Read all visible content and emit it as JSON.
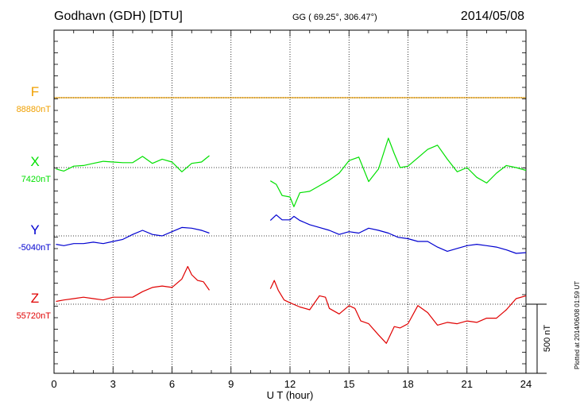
{
  "header": {
    "station": "Godhavn (GDH)  [DTU]",
    "coords": "GG ( 69.25°, 306.47°)",
    "date": "2014/05/08"
  },
  "plot_stamp": "Plotted at 2014/06/08 01:59 UT",
  "colors": {
    "F": "#f0a000",
    "X": "#00e000",
    "Y": "#0000d0",
    "Z": "#e00000"
  },
  "chart_data": {
    "type": "line",
    "title": "Godhavn (GDH)  [DTU]  2014/05/08",
    "xlabel": "U T (hour)",
    "ylabel": "",
    "xlim": [
      0,
      24
    ],
    "xticks": [
      "0",
      "3",
      "6",
      "9",
      "12",
      "15",
      "18",
      "21",
      "24"
    ],
    "scale_bar": "500 nT",
    "y_units": "nT offset from baseline",
    "ylim_relative": [
      -1000,
      1100
    ],
    "series": [
      {
        "name": "F",
        "baseline_label": "88880nT",
        "baseline": 0,
        "points": []
      },
      {
        "name": "X",
        "baseline_label": "7420nT",
        "baseline": 0,
        "points": [
          [
            0.1,
            -10
          ],
          [
            0.5,
            -25
          ],
          [
            1.0,
            10
          ],
          [
            1.5,
            15
          ],
          [
            2.0,
            30
          ],
          [
            2.5,
            45
          ],
          [
            3.0,
            40
          ],
          [
            3.5,
            35
          ],
          [
            4.0,
            35
          ],
          [
            4.5,
            80
          ],
          [
            5.0,
            30
          ],
          [
            5.5,
            60
          ],
          [
            6.0,
            40
          ],
          [
            6.5,
            -30
          ],
          [
            7.0,
            30
          ],
          [
            7.5,
            40
          ],
          [
            7.9,
            85
          ],
          [
            11.0,
            -95
          ],
          [
            11.3,
            -120
          ],
          [
            11.6,
            -200
          ],
          [
            12.0,
            -210
          ],
          [
            12.2,
            -280
          ],
          [
            12.5,
            -180
          ],
          [
            13.0,
            -170
          ],
          [
            13.5,
            -130
          ],
          [
            14.0,
            -90
          ],
          [
            14.5,
            -40
          ],
          [
            15.0,
            50
          ],
          [
            15.5,
            75
          ],
          [
            16.0,
            -100
          ],
          [
            16.5,
            -10
          ],
          [
            17.0,
            210
          ],
          [
            17.3,
            100
          ],
          [
            17.6,
            0
          ],
          [
            18.0,
            10
          ],
          [
            18.5,
            70
          ],
          [
            19.0,
            130
          ],
          [
            19.5,
            160
          ],
          [
            20.0,
            60
          ],
          [
            20.5,
            -30
          ],
          [
            21.0,
            0
          ],
          [
            21.5,
            -70
          ],
          [
            22.0,
            -110
          ],
          [
            22.5,
            -40
          ],
          [
            23.0,
            15
          ],
          [
            23.5,
            0
          ],
          [
            24.0,
            -20
          ]
        ]
      },
      {
        "name": "Y",
        "baseline_label": "-5040nT",
        "baseline": 0,
        "points": [
          [
            0.1,
            -60
          ],
          [
            0.5,
            -70
          ],
          [
            1.0,
            -55
          ],
          [
            1.5,
            -55
          ],
          [
            2.0,
            -45
          ],
          [
            2.5,
            -55
          ],
          [
            3.0,
            -40
          ],
          [
            3.5,
            -25
          ],
          [
            4.0,
            10
          ],
          [
            4.5,
            40
          ],
          [
            5.0,
            10
          ],
          [
            5.5,
            0
          ],
          [
            6.0,
            30
          ],
          [
            6.5,
            60
          ],
          [
            7.0,
            55
          ],
          [
            7.5,
            40
          ],
          [
            7.9,
            20
          ],
          [
            11.0,
            110
          ],
          [
            11.3,
            150
          ],
          [
            11.6,
            115
          ],
          [
            12.0,
            115
          ],
          [
            12.2,
            140
          ],
          [
            12.5,
            110
          ],
          [
            13.0,
            80
          ],
          [
            13.5,
            60
          ],
          [
            14.0,
            40
          ],
          [
            14.5,
            10
          ],
          [
            15.0,
            30
          ],
          [
            15.5,
            20
          ],
          [
            16.0,
            55
          ],
          [
            16.5,
            40
          ],
          [
            17.0,
            20
          ],
          [
            17.5,
            -10
          ],
          [
            18.0,
            -20
          ],
          [
            18.5,
            -40
          ],
          [
            19.0,
            -40
          ],
          [
            19.5,
            -80
          ],
          [
            20.0,
            -110
          ],
          [
            20.5,
            -90
          ],
          [
            21.0,
            -70
          ],
          [
            21.5,
            -60
          ],
          [
            22.0,
            -70
          ],
          [
            22.5,
            -80
          ],
          [
            23.0,
            -100
          ],
          [
            23.5,
            -125
          ],
          [
            24.0,
            -120
          ]
        ]
      },
      {
        "name": "Z",
        "baseline_label": "55720nT",
        "baseline": 0,
        "points": [
          [
            0.1,
            20
          ],
          [
            0.5,
            30
          ],
          [
            1.0,
            40
          ],
          [
            1.5,
            50
          ],
          [
            2.0,
            40
          ],
          [
            2.5,
            30
          ],
          [
            3.0,
            50
          ],
          [
            3.5,
            50
          ],
          [
            4.0,
            50
          ],
          [
            4.5,
            90
          ],
          [
            5.0,
            120
          ],
          [
            5.5,
            130
          ],
          [
            6.0,
            120
          ],
          [
            6.5,
            180
          ],
          [
            6.8,
            270
          ],
          [
            7.0,
            210
          ],
          [
            7.3,
            170
          ],
          [
            7.6,
            160
          ],
          [
            7.9,
            100
          ],
          [
            11.0,
            110
          ],
          [
            11.2,
            170
          ],
          [
            11.4,
            100
          ],
          [
            11.7,
            30
          ],
          [
            12.0,
            10
          ],
          [
            12.5,
            -20
          ],
          [
            13.0,
            -40
          ],
          [
            13.5,
            60
          ],
          [
            13.8,
            50
          ],
          [
            14.0,
            -30
          ],
          [
            14.5,
            -70
          ],
          [
            15.0,
            -10
          ],
          [
            15.3,
            -30
          ],
          [
            15.6,
            -120
          ],
          [
            16.0,
            -140
          ],
          [
            16.5,
            -220
          ],
          [
            16.9,
            -280
          ],
          [
            17.3,
            -160
          ],
          [
            17.6,
            -170
          ],
          [
            18.0,
            -140
          ],
          [
            18.5,
            -10
          ],
          [
            19.0,
            -60
          ],
          [
            19.5,
            -150
          ],
          [
            20.0,
            -130
          ],
          [
            20.5,
            -140
          ],
          [
            21.0,
            -120
          ],
          [
            21.5,
            -130
          ],
          [
            22.0,
            -100
          ],
          [
            22.5,
            -100
          ],
          [
            23.0,
            -40
          ],
          [
            23.5,
            40
          ],
          [
            24.0,
            60
          ]
        ]
      }
    ]
  }
}
